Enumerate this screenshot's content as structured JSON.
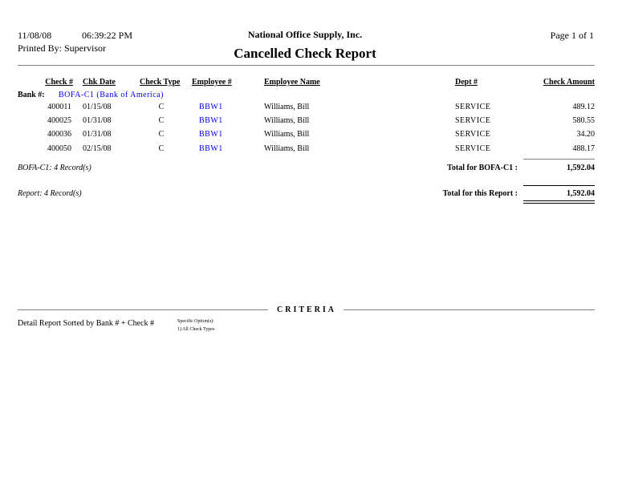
{
  "header": {
    "date": "11/08/08",
    "time": "06:39:22 PM",
    "printed_by": "Printed By: Supervisor",
    "company": "National Office Supply, Inc.",
    "title": "Cancelled Check Report",
    "page": "Page 1 of  1"
  },
  "columns": [
    "Check #",
    "Chk Date",
    "Check Type",
    "Employee #",
    "Employee Name",
    "Dept #",
    "Check Amount"
  ],
  "bank": {
    "label": "Bank #:",
    "value": "BOFA-C1 (Bank of America)"
  },
  "rows": [
    {
      "check": "400011",
      "date": "01/15/08",
      "type": "C",
      "emp": "BBW1",
      "name": "Williams, Bill",
      "dept": "SERVICE",
      "amount": "489.12"
    },
    {
      "check": "400025",
      "date": "01/31/08",
      "type": "C",
      "emp": "BBW1",
      "name": "Williams, Bill",
      "dept": "SERVICE",
      "amount": "580.55"
    },
    {
      "check": "400036",
      "date": "01/31/08",
      "type": "C",
      "emp": "BBW1",
      "name": "Williams, Bill",
      "dept": "SERVICE",
      "amount": "34.20"
    },
    {
      "check": "400050",
      "date": "02/15/08",
      "type": "C",
      "emp": "BBW1",
      "name": "Williams, Bill",
      "dept": "SERVICE",
      "amount": "488.17"
    }
  ],
  "bank_summary": {
    "records": "BOFA-C1: 4 Record(s)",
    "total_label": "Total for BOFA-C1 :",
    "total": "1,592.04"
  },
  "report_summary": {
    "records": "Report: 4 Record(s)",
    "total_label": "Total for this Report :",
    "total": "1,592.04"
  },
  "criteria": {
    "heading": "CRITERIA",
    "sort": "Detail Report Sorted by Bank # + Check #",
    "options_label": "Specific Option(s):",
    "options": [
      "1) All Check Types"
    ]
  },
  "colors": {
    "link": "#0000ee",
    "rule": "#808080"
  }
}
